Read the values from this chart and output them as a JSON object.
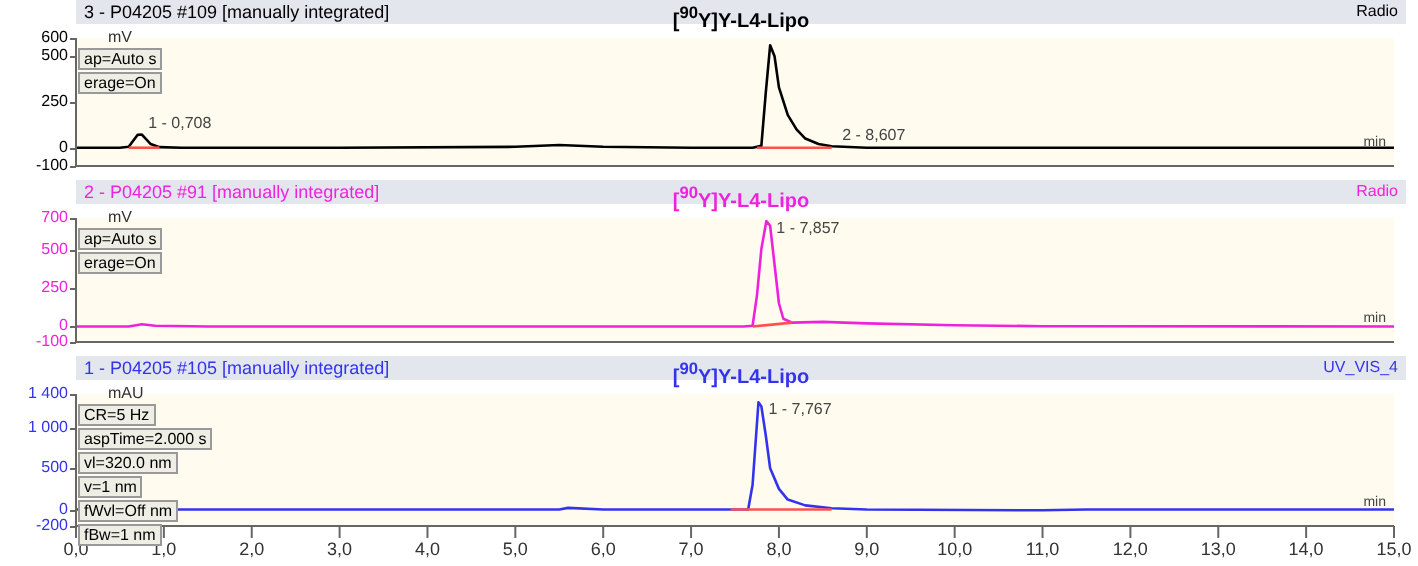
{
  "chart_data": [
    {
      "type": "line",
      "title": "3 - P04205 #109 [manually integrated]",
      "subtitle": "[$^{90}$Y]Y-L4-Lipo",
      "ylabel": "mV",
      "xlabel": "min",
      "tick_labels": "y",
      "grid": false,
      "marker": "none",
      "line_style": "solid",
      "xlim": [
        0,
        15
      ],
      "ylim": [
        -100,
        600
      ],
      "yticks": [
        -100,
        0,
        250,
        500,
        600
      ],
      "series": [
        {
          "color": "#000000",
          "x": [
            0,
            0.5,
            0.6,
            0.7,
            0.75,
            0.85,
            0.95,
            1.2,
            3,
            5,
            5.5,
            6,
            7,
            7.7,
            7.8,
            7.85,
            7.9,
            7.95,
            8.0,
            8.1,
            8.2,
            8.3,
            8.45,
            8.6,
            9,
            15
          ],
          "values": [
            0,
            0,
            5,
            70,
            72,
            20,
            3,
            0,
            0,
            5,
            15,
            5,
            0,
            0,
            10,
            300,
            560,
            500,
            330,
            180,
            100,
            50,
            20,
            8,
            0,
            0
          ]
        },
        {
          "color": "#ff5050",
          "x": [
            0.6,
            0.95
          ],
          "values": [
            0,
            0
          ]
        },
        {
          "color": "#ff5050",
          "x": [
            7.75,
            8.6
          ],
          "values": [
            0,
            0
          ]
        }
      ],
      "annotations": [
        "Radio",
        "ap=Auto s",
        "erage=On",
        {
          "text": "1 - 0,708",
          "x": 0.708,
          "y": 72
        },
        {
          "text": "2 - 8,607",
          "x": 8.607,
          "y": 8
        }
      ]
    },
    {
      "type": "line",
      "title": "2 - P04205 #91 [manually integrated]",
      "subtitle": "[$^{90}$Y]Y-L4-Lipo",
      "ylabel": "mV",
      "xlabel": "min",
      "tick_labels": "y",
      "grid": false,
      "marker": "none",
      "line_style": "solid",
      "xlim": [
        0,
        15
      ],
      "ylim": [
        -100,
        700
      ],
      "yticks": [
        -100,
        0,
        250,
        500,
        700
      ],
      "series": [
        {
          "color": "#ee22dd",
          "x": [
            0,
            0.6,
            0.75,
            0.9,
            1.5,
            7.6,
            7.7,
            7.75,
            7.8,
            7.857,
            7.9,
            7.95,
            8.0,
            8.05,
            8.15,
            8.5,
            9,
            10,
            11,
            15
          ],
          "values": [
            0,
            0,
            15,
            5,
            0,
            0,
            5,
            200,
            500,
            680,
            650,
            400,
            150,
            50,
            25,
            30,
            20,
            8,
            2,
            0
          ]
        },
        {
          "color": "#ff5050",
          "x": [
            7.7,
            8.15
          ],
          "values": [
            0,
            25
          ]
        }
      ],
      "annotations": [
        "Radio",
        "ap=Auto s",
        "erage=On",
        {
          "text": "1 - 7,857",
          "x": 7.857,
          "y": 680
        }
      ]
    },
    {
      "type": "line",
      "title": "1 - P04205 #105 [manually integrated]",
      "subtitle": "[$^{90}$Y]Y-L4-Lipo",
      "ylabel": "mAU",
      "xlabel": "min",
      "grid": false,
      "marker": "none",
      "line_style": "solid",
      "xlim": [
        0,
        15
      ],
      "xticks": [
        {
          "value": 0,
          "label": "0,0"
        },
        {
          "value": 1,
          "label": "1,0"
        },
        {
          "value": 2,
          "label": "2,0"
        },
        {
          "value": 3,
          "label": "3,0"
        },
        {
          "value": 4,
          "label": "4,0"
        },
        {
          "value": 5,
          "label": "5,0"
        },
        {
          "value": 6,
          "label": "6,0"
        },
        {
          "value": 7,
          "label": "7,0"
        },
        {
          "value": 8,
          "label": "8,0"
        },
        {
          "value": 9,
          "label": "9,0"
        },
        {
          "value": 10,
          "label": "10,0"
        },
        {
          "value": 11,
          "label": "11,0"
        },
        {
          "value": 12,
          "label": "12,0"
        },
        {
          "value": 13,
          "label": "13,0"
        },
        {
          "value": 14,
          "label": "14,0"
        },
        {
          "value": 15,
          "label": "15,0"
        }
      ],
      "ylim": [
        -200,
        1400
      ],
      "yticks": [
        -200,
        0,
        500,
        {
          "value": 1000,
          "label": "1 000"
        },
        {
          "value": 1400,
          "label": "1 400"
        }
      ],
      "series": [
        {
          "color": "#3333ee",
          "x": [
            0,
            5.5,
            5.6,
            6,
            7.5,
            7.65,
            7.7,
            7.767,
            7.8,
            7.85,
            7.9,
            8.0,
            8.1,
            8.3,
            8.6,
            9,
            11,
            11.5,
            15
          ],
          "values": [
            0,
            0,
            20,
            0,
            0,
            0,
            300,
            1300,
            1250,
            900,
            500,
            250,
            120,
            50,
            15,
            0,
            -10,
            0,
            0
          ]
        },
        {
          "color": "#ff5050",
          "x": [
            7.45,
            8.6
          ],
          "values": [
            0,
            0
          ]
        }
      ],
      "annotations": [
        "UV_VIS_4",
        "CR=5 Hz",
        "aspTime=2.000 s",
        "vl=320.0 nm",
        "v=1 nm",
        "fWvl=Off nm",
        "fBw=1 nm",
        {
          "text": "1 - 7,767",
          "x": 7.767,
          "y": 1300
        }
      ]
    }
  ]
}
